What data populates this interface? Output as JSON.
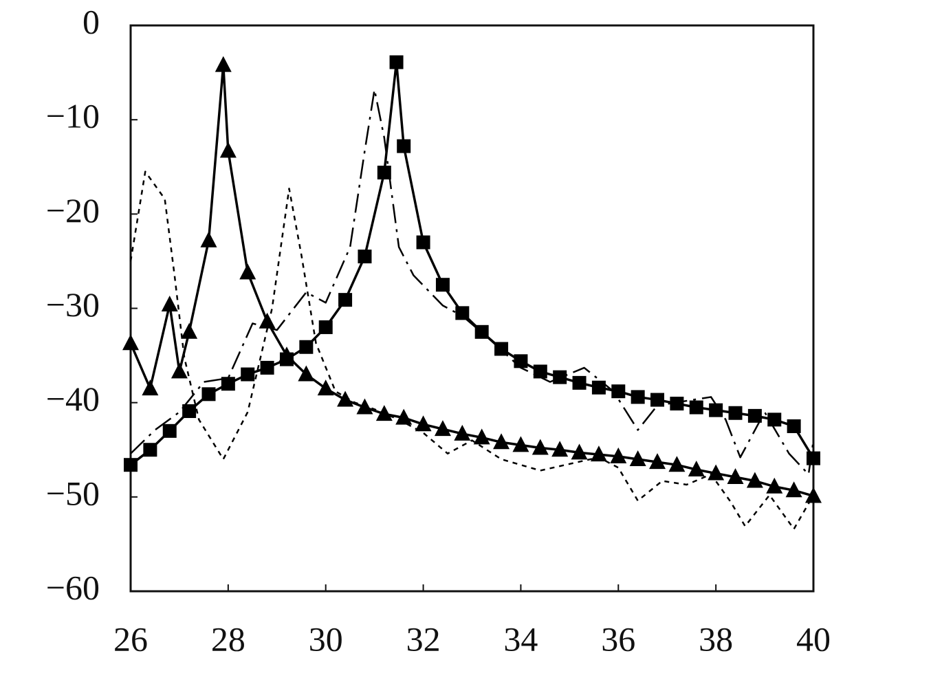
{
  "chart_data": {
    "type": "line",
    "xlim": [
      26,
      40
    ],
    "xticks": [
      26,
      28,
      30,
      32,
      34,
      36,
      38,
      40
    ],
    "ylim": [
      -60,
      0
    ],
    "yticks": [
      {
        "value": -60,
        "label": "−60"
      },
      {
        "value": -50,
        "label": "−50"
      },
      {
        "value": -40,
        "label": "−40"
      },
      {
        "value": -30,
        "label": "−30"
      },
      {
        "value": -20,
        "label": "−20"
      },
      {
        "value": -10,
        "label": "−10"
      },
      0
    ],
    "grid": false,
    "series": [
      {
        "color": "#000000",
        "dash": "dashed",
        "marker": "none",
        "x": [
          26,
          26.3,
          26.7,
          26.9,
          27.1,
          27.4,
          27.9,
          28.4,
          28.9,
          29.25,
          29.5,
          29.8,
          30.2,
          30.6,
          31.0,
          31.5,
          32.0,
          32.5,
          33.0,
          33.6,
          34.4,
          35.0,
          35.6,
          36.0,
          36.4,
          36.9,
          37.4,
          37.9,
          38.3,
          38.6,
          39.1,
          39.6,
          40.0
        ],
        "values": [
          -25,
          -15.5,
          -18.4,
          -26.5,
          -35.2,
          -41.8,
          -46,
          -41,
          -30,
          -17.3,
          -24.3,
          -33.7,
          -38.8,
          -40,
          -40.7,
          -41.8,
          -43.2,
          -45.4,
          -44,
          -46,
          -47.2,
          -46.5,
          -45.8,
          -46.9,
          -50.4,
          -48.3,
          -48.7,
          -47.6,
          -50.5,
          -53.1,
          -49.8,
          -53.4,
          -49.8
        ]
      },
      {
        "color": "#000000",
        "dash": "dashdot",
        "marker": "none",
        "x": [
          26,
          26.5,
          27.0,
          27.5,
          28.0,
          28.5,
          29.0,
          29.6,
          30.0,
          30.5,
          30.8,
          31.0,
          31.2,
          31.5,
          31.8,
          32.4,
          32.8,
          33.3,
          34.0,
          34.6,
          35.3,
          35.9,
          36.4,
          36.8,
          37.9,
          38.2,
          38.5,
          39.0,
          39.5,
          39.9,
          40.0
        ],
        "values": [
          -45.4,
          -42.9,
          -41,
          -37.8,
          -37.4,
          -31.6,
          -32.3,
          -28.3,
          -29.4,
          -23.5,
          -13.3,
          -6.8,
          -11.9,
          -23.5,
          -26.5,
          -29.7,
          -30.8,
          -33,
          -36.3,
          -37.8,
          -36.3,
          -38.8,
          -42.9,
          -40.3,
          -39.4,
          -41.8,
          -45.8,
          -41,
          -45.4,
          -47.6,
          -44
        ]
      },
      {
        "color": "#000000",
        "dash": "solid",
        "marker": "triangle",
        "x": [
          26,
          26.4,
          26.8,
          27.0,
          27.2,
          27.6,
          27.9,
          28.0,
          28.4,
          28.8,
          29.2,
          29.6,
          30.0,
          30.4,
          30.8,
          31.2,
          31.6,
          32.0,
          32.4,
          32.8,
          33.2,
          33.6,
          34.0,
          34.4,
          34.8,
          35.2,
          35.6,
          36.0,
          36.4,
          36.8,
          37.2,
          37.6,
          38.0,
          38.4,
          38.8,
          39.2,
          39.6,
          40.0
        ],
        "values": [
          -33.7,
          -38.5,
          -29.6,
          -36.7,
          -32.5,
          -22.8,
          -4.2,
          -13.3,
          -26.2,
          -31.4,
          -35.0,
          -37.0,
          -38.5,
          -39.7,
          -40.5,
          -41.2,
          -41.6,
          -42.3,
          -42.8,
          -43.3,
          -43.7,
          -44.2,
          -44.5,
          -44.8,
          -45.0,
          -45.3,
          -45.5,
          -45.7,
          -46.0,
          -46.3,
          -46.6,
          -47.1,
          -47.5,
          -47.9,
          -48.3,
          -48.9,
          -49.3,
          -49.9
        ]
      },
      {
        "color": "#000000",
        "dash": "solid",
        "marker": "square",
        "x": [
          26,
          26.4,
          26.8,
          27.2,
          27.6,
          28.0,
          28.4,
          28.8,
          29.2,
          29.6,
          30.0,
          30.4,
          30.8,
          31.2,
          31.45,
          31.6,
          32.0,
          32.4,
          32.8,
          33.2,
          33.6,
          34.0,
          34.4,
          34.8,
          35.2,
          35.6,
          36.0,
          36.4,
          36.8,
          37.2,
          37.6,
          38.0,
          38.4,
          38.8,
          39.2,
          39.6,
          40.0
        ],
        "values": [
          -46.6,
          -45.0,
          -43.0,
          -40.9,
          -39.1,
          -38.0,
          -37.0,
          -36.3,
          -35.4,
          -34.1,
          -32.0,
          -29.1,
          -24.5,
          -15.6,
          -3.9,
          -12.8,
          -23.0,
          -27.5,
          -30.5,
          -32.5,
          -34.3,
          -35.6,
          -36.7,
          -37.3,
          -37.9,
          -38.4,
          -38.8,
          -39.4,
          -39.7,
          -40.1,
          -40.5,
          -40.8,
          -41.1,
          -41.4,
          -41.8,
          -42.5,
          -45.9
        ]
      }
    ]
  }
}
